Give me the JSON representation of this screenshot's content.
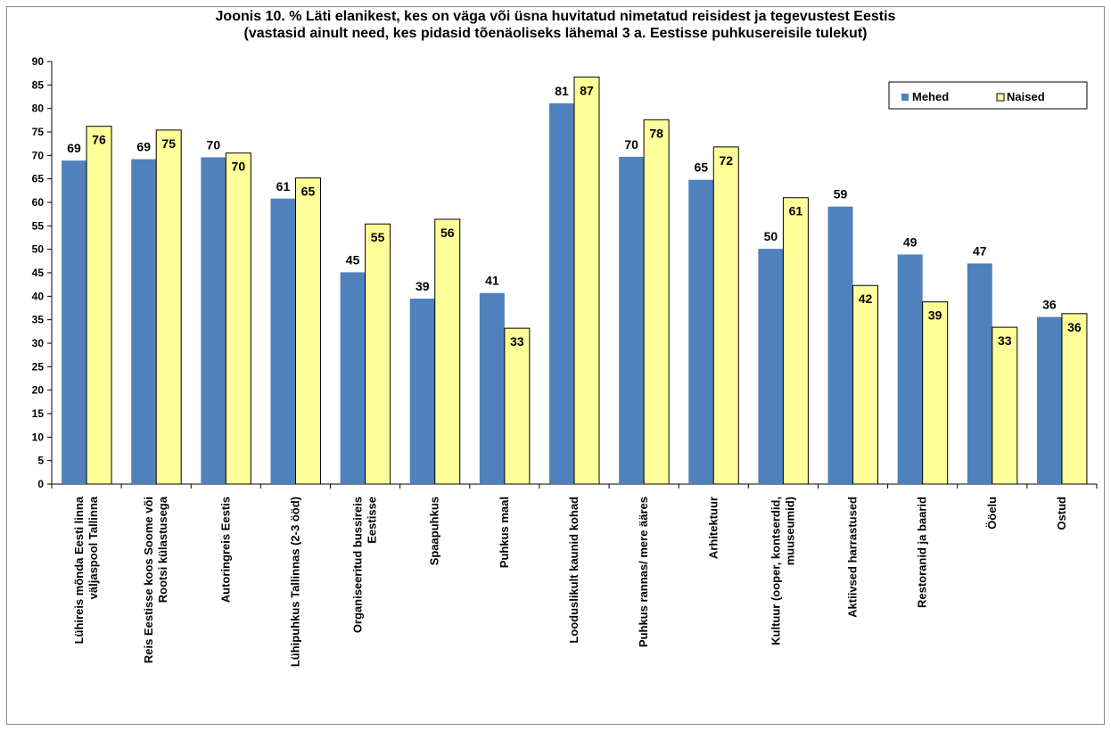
{
  "chart_data": {
    "type": "bar",
    "title_line1": "Joonis 10. % Läti elanikest, kes on väga või üsna huvitatud nimetatud reisidest ja tegevustest Eestis",
    "title_line2": "(vastasid ainult need, kes pidasid tõenäoliseks lähemal 3 a. Eestisse puhkusereisile tulekut)",
    "ylim": [
      0,
      90
    ],
    "yticks": [
      0,
      5,
      10,
      15,
      20,
      25,
      30,
      35,
      40,
      45,
      50,
      55,
      60,
      65,
      70,
      75,
      80,
      85,
      90
    ],
    "grid": false,
    "legend_position": "top-right",
    "categories": [
      [
        "Lühireis mõnda Eesti linna",
        "väljaspool Tallinna"
      ],
      [
        "Reis Eestisse koos Soome või",
        "Rootsi külastusega"
      ],
      [
        "Autoringreis Eestis"
      ],
      [
        "Lühipuhkus Tallinnas (2-3 ööd)"
      ],
      [
        "Organiseeritud bussireis",
        "Eestisse"
      ],
      [
        "Spaapuhkus"
      ],
      [
        "Puhkus maal"
      ],
      [
        "Looduslikult kaunid kohad"
      ],
      [
        "Puhkus rannas/ mere ääres"
      ],
      [
        "Arhitektuur"
      ],
      [
        "Kultuur (ooper, kontserdid,",
        "muuseumid)"
      ],
      [
        "Aktiivsed harrastused"
      ],
      [
        "Restoranid ja baarid"
      ],
      [
        "Ööelu"
      ],
      [
        "Ostud"
      ]
    ],
    "series": [
      {
        "name": "Mehed",
        "color": "#4f81bd",
        "values": [
          68.9,
          69.2,
          69.6,
          60.8,
          45.1,
          39.5,
          40.7,
          81.1,
          69.7,
          64.8,
          50.1,
          59.1,
          48.9,
          47.0,
          35.6
        ],
        "labels": [
          "69",
          "69",
          "70",
          "61",
          "45",
          "39",
          "41",
          "81",
          "70",
          "65",
          "50",
          "59",
          "49",
          "47",
          "36"
        ]
      },
      {
        "name": "Naised",
        "color": "#ffff99",
        "values": [
          76.2,
          75.4,
          70.5,
          65.2,
          55.4,
          56.4,
          33.2,
          86.7,
          77.6,
          71.8,
          61.0,
          42.3,
          38.8,
          33.4,
          36.3
        ],
        "labels": [
          "76",
          "75",
          "70",
          "65",
          "55",
          "56",
          "33",
          "87",
          "78",
          "72",
          "61",
          "42",
          "39",
          "33",
          "36"
        ]
      }
    ]
  }
}
